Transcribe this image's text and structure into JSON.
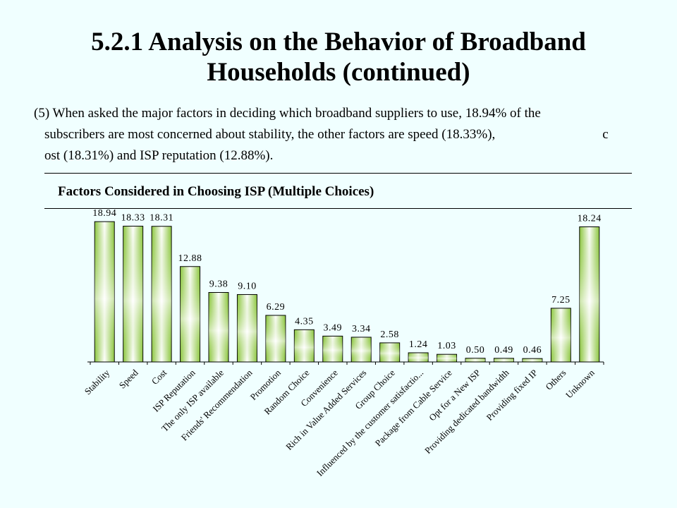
{
  "title": {
    "line1": "5.2.1 Analysis on the Behavior of Broadband",
    "line2": "Households (continued)"
  },
  "paragraph": {
    "line1": "(5) When asked the major factors in deciding which broadband suppliers to use, 18.94% of the",
    "line2": "subscribers are most concerned about stability, the other factors are speed (18.33%),                                c",
    "line3": "ost (18.31%) and ISP reputation (12.88%)."
  },
  "chart_title": "Factors Considered in Choosing ISP (Multiple Choices)",
  "colors": {
    "bar_dark": "#8cc63f",
    "bar_light": "#ffffff",
    "background": "#f0ffff"
  },
  "chart_data": {
    "type": "bar",
    "title": "Factors Considered in Choosing ISP (Multiple Choices)",
    "categories": [
      "Stability",
      "Speed",
      "Cost",
      "ISP Reputation",
      "The only ISP available",
      "Friends' Recommendation",
      "Promotion",
      "Random Choice",
      "Convenience",
      "Rich in Value Added Services",
      "Group Choice",
      "Influenced by the customer satisfactio...",
      "Package from Cable Service",
      "Opt for a New ISP",
      "Providing dedicated bandwidth",
      "Providing fixed IP",
      "Others",
      "Unknown"
    ],
    "label_texts": [
      "18.94",
      "18.33",
      "18.31",
      "12.88",
      "9.38",
      "9.10",
      "6.29",
      "4.35",
      "3.49",
      "3.34",
      "2.58",
      "1.24",
      "1.03",
      "0.50",
      "0.49",
      "0.46",
      "7.25",
      "18.24"
    ],
    "values": [
      18.94,
      18.33,
      18.31,
      12.88,
      9.38,
      9.1,
      6.29,
      4.35,
      3.49,
      3.34,
      2.58,
      1.24,
      1.03,
      0.5,
      0.49,
      0.46,
      7.25,
      18.24
    ],
    "xlabel": "",
    "ylabel": "",
    "ylim": [
      0,
      20
    ],
    "grid": false
  }
}
